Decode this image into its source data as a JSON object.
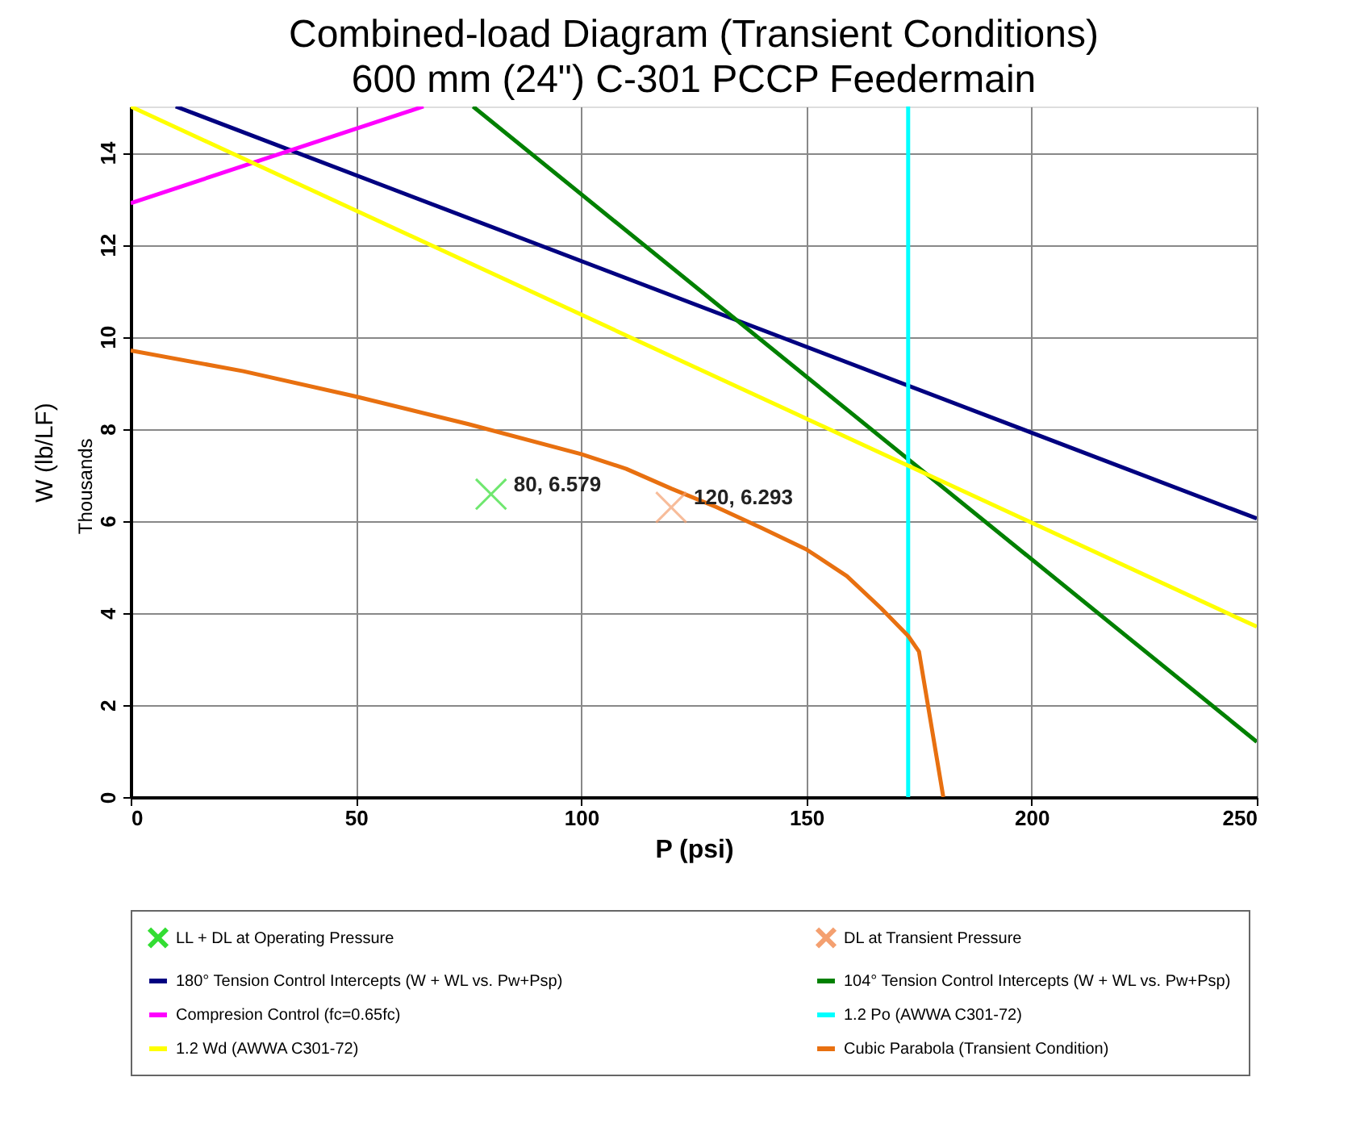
{
  "chart_data": {
    "type": "line",
    "title": "Combined-load Diagram (Transient Conditions)",
    "subtitle": "600 mm (24\") C-301 PCCP Feedermain",
    "xlabel": "P (psi)",
    "ylabel": "W (lb/LF)",
    "annotations": [
      "Thousands"
    ],
    "xlim": [
      0,
      250
    ],
    "xticks": [
      0,
      50,
      100,
      150,
      200,
      250
    ],
    "ylim": [
      0,
      15
    ],
    "yticks": [
      0,
      2,
      4,
      6,
      8,
      10,
      12,
      14
    ],
    "grid": true,
    "legend": "bottom",
    "series": [
      {
        "name": "LL + DL at Operating Pressure",
        "type": "scatter",
        "marker": "cross",
        "color": "#33dd33",
        "x": [
          80
        ],
        "values": [
          6.579
        ],
        "value_labels": [
          "80, 6.579"
        ]
      },
      {
        "name": "DL at Transient Pressure",
        "type": "scatter",
        "marker": "cross",
        "color": "#f4a070",
        "x": [
          120
        ],
        "values": [
          6.293
        ],
        "value_labels": [
          "120, 6.293"
        ]
      },
      {
        "name": "180° Tension Control Intercepts (W + WL vs. Pw+Psp)",
        "color": "#000080",
        "x": [
          10,
          250
        ],
        "values": [
          15,
          6.05
        ]
      },
      {
        "name": "104° Tension Control Intercepts (W + WL vs. Pw+Psp)",
        "color": "#008000",
        "x": [
          76,
          250
        ],
        "values": [
          15,
          1.2
        ]
      },
      {
        "name": "Compresion Control (fc=0.65fc)",
        "color": "#ff00ff",
        "x": [
          0,
          65
        ],
        "values": [
          12.9,
          15
        ]
      },
      {
        "name": "1.2 Po (AWWA C301-72)",
        "color": "#00ffff",
        "x": [
          172.6,
          172.6
        ],
        "values": [
          0,
          15
        ]
      },
      {
        "name": "1.2 Wd (AWWA C301-72)",
        "color": "#ffff00",
        "x": [
          0,
          250
        ],
        "values": [
          15,
          3.7
        ]
      },
      {
        "name": "Cubic Parabola (Transient Condition)",
        "color": "#e87010",
        "x": [
          0,
          25,
          50,
          75,
          100,
          110,
          120,
          130,
          140,
          150,
          159,
          166.6,
          172.6,
          175,
          180.4
        ],
        "values": [
          9.7,
          9.25,
          8.7,
          8.1,
          7.45,
          7.13,
          6.7,
          6.3,
          5.85,
          5.38,
          4.8,
          4.1,
          3.5,
          3.16,
          0
        ]
      }
    ]
  }
}
